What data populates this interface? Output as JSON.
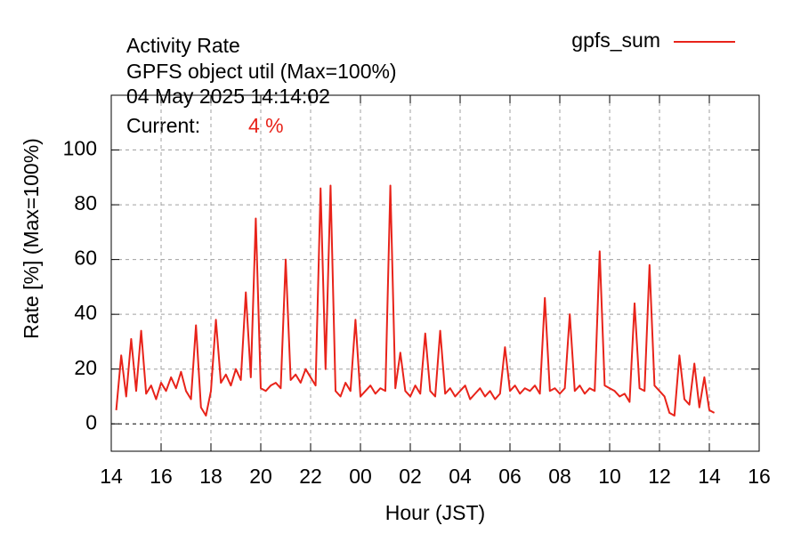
{
  "chart_data": {
    "type": "line",
    "title": "Activity Rate",
    "subtitle": "GPFS object util (Max=100%)",
    "timestamp": "04 May 2025 14:14:02",
    "current_label": "Current:",
    "current_value": "4 %",
    "x_label": "Hour (JST)",
    "y_label": "Rate [%]  (Max=100%)",
    "xlim": [
      14,
      40
    ],
    "ylim": [
      -10,
      120
    ],
    "xticks": [
      14,
      16,
      18,
      20,
      22,
      {
        "value": 24,
        "label": "00"
      },
      {
        "value": 26,
        "label": "02"
      },
      {
        "value": 28,
        "label": "04"
      },
      {
        "value": 30,
        "label": "06"
      },
      {
        "value": 32,
        "label": "08"
      },
      {
        "value": 34,
        "label": "10"
      },
      {
        "value": 36,
        "label": "12"
      },
      {
        "value": 38,
        "label": "14"
      },
      {
        "value": 40,
        "label": "16"
      }
    ],
    "yticks": [
      0,
      20,
      40,
      60,
      80,
      100
    ],
    "grid": true,
    "legend": "top-right",
    "x": [
      14.2,
      14.4,
      14.6,
      14.8,
      15.0,
      15.2,
      15.4,
      15.6,
      15.8,
      16.0,
      16.2,
      16.4,
      16.6,
      16.8,
      17.0,
      17.2,
      17.4,
      17.6,
      17.8,
      18.0,
      18.2,
      18.4,
      18.6,
      18.8,
      19.0,
      19.2,
      19.4,
      19.6,
      19.8,
      20.0,
      20.2,
      20.4,
      20.6,
      20.8,
      21.0,
      21.2,
      21.4,
      21.6,
      21.8,
      22.0,
      22.2,
      22.4,
      22.6,
      22.8,
      23.0,
      23.2,
      23.4,
      23.6,
      23.8,
      24.0,
      24.2,
      24.4,
      24.6,
      24.8,
      25.0,
      25.2,
      25.4,
      25.6,
      25.8,
      26.0,
      26.2,
      26.4,
      26.6,
      26.8,
      27.0,
      27.2,
      27.4,
      27.6,
      27.8,
      28.0,
      28.2,
      28.4,
      28.6,
      28.8,
      29.0,
      29.2,
      29.4,
      29.6,
      29.8,
      30.0,
      30.2,
      30.4,
      30.6,
      30.8,
      31.0,
      31.2,
      31.4,
      31.6,
      31.8,
      32.0,
      32.2,
      32.4,
      32.6,
      32.8,
      33.0,
      33.2,
      33.4,
      33.6,
      33.8,
      34.0,
      34.2,
      34.4,
      34.6,
      34.8,
      35.0,
      35.2,
      35.4,
      35.6,
      35.8,
      36.0,
      36.2,
      36.4,
      36.6,
      36.8,
      37.0,
      37.2,
      37.4,
      37.6,
      37.8,
      38.0,
      38.2
    ],
    "series": [
      {
        "name": "gpfs_sum",
        "color": "#e8231a",
        "values": [
          5,
          25,
          10,
          31,
          12,
          34,
          11,
          14,
          9,
          15,
          12,
          17,
          13,
          19,
          12,
          9,
          36,
          6,
          3,
          12,
          38,
          15,
          18,
          14,
          20,
          16,
          48,
          17,
          75,
          13,
          12,
          14,
          15,
          13,
          60,
          16,
          18,
          15,
          20,
          17,
          14,
          86,
          20,
          87,
          12,
          10,
          15,
          12,
          38,
          10,
          12,
          14,
          11,
          13,
          12,
          87,
          13,
          26,
          12,
          10,
          14,
          11,
          33,
          12,
          10,
          34,
          11,
          13,
          10,
          12,
          14,
          9,
          11,
          13,
          10,
          12,
          9,
          11,
          28,
          12,
          14,
          11,
          13,
          12,
          14,
          11,
          46,
          12,
          13,
          11,
          13,
          40,
          12,
          14,
          11,
          13,
          12,
          63,
          14,
          13,
          12,
          10,
          11,
          8,
          44,
          13,
          12,
          58,
          14,
          12,
          10,
          4,
          3,
          25,
          9,
          7,
          22,
          6,
          17,
          5,
          4
        ]
      }
    ]
  }
}
